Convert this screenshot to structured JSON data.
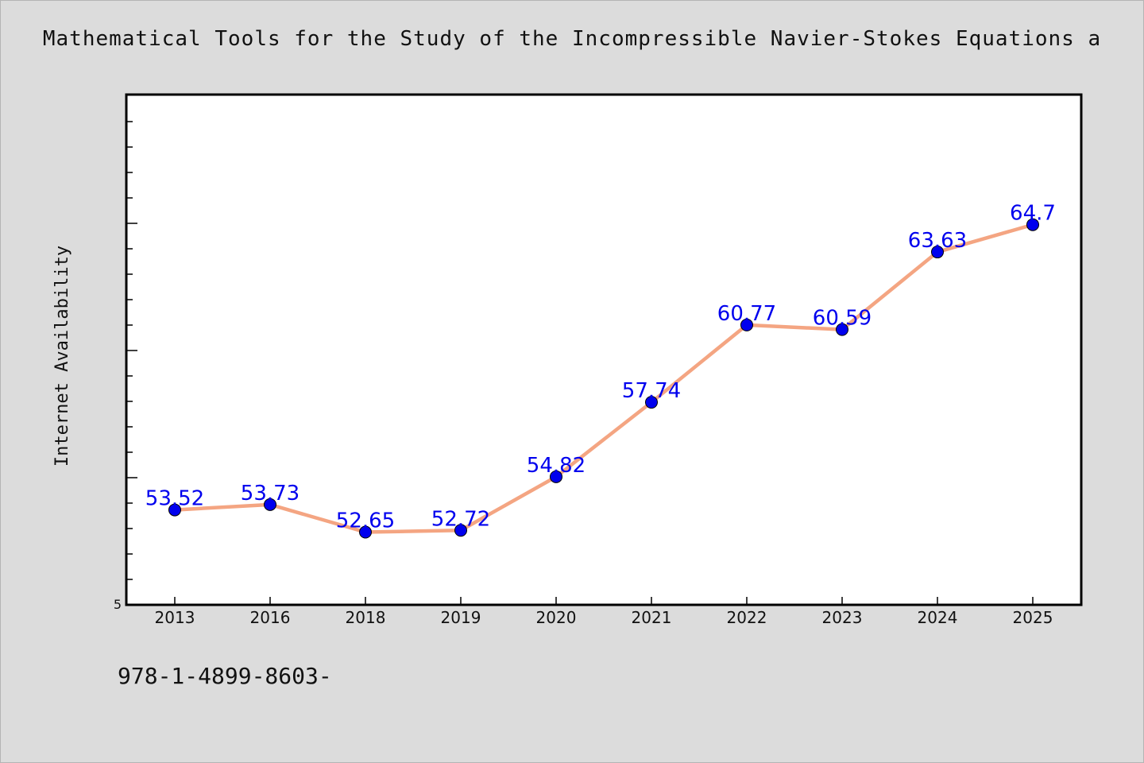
{
  "chart_data": {
    "type": "line",
    "title": "Mathematical Tools for the Study of the Incompressible Navier-Stokes Equations a",
    "xlabel": "",
    "ylabel": "Internet Availability",
    "categories": [
      "2013",
      "2016",
      "2018",
      "2019",
      "2020",
      "2021",
      "2022",
      "2023",
      "2024",
      "2025"
    ],
    "series": [
      {
        "values": [
          53.52,
          53.73,
          52.65,
          52.72,
          54.82,
          57.74,
          60.77,
          60.59,
          63.63,
          64.7
        ],
        "labels": [
          "53.52",
          "53.73",
          "52.65",
          "52.72",
          "54.82",
          "57.74",
          "60.77",
          "60.59",
          "63.63",
          "64.7"
        ]
      }
    ],
    "y_tick_labels": [
      "5"
    ],
    "ylim": [
      49.8,
      69.8
    ],
    "grid": false,
    "colors": {
      "line": "#f4a582",
      "marker": "#0000ee",
      "label": "#0000ee",
      "plot_bg": "#ffffff",
      "page_bg": "#dcdcdc"
    }
  },
  "footer": {
    "text": "978-1-4899-8603-"
  }
}
